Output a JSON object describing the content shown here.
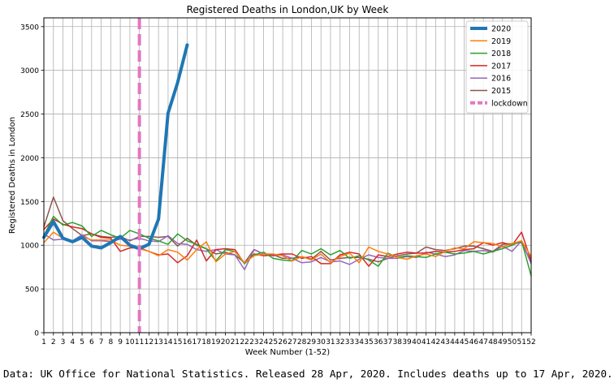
{
  "caption": "Data: UK Office for National Statistics. Released 28 Apr, 2020. Includes deaths up to 17 Apr, 2020.",
  "chart_data": {
    "type": "line",
    "title": "Registered Deaths in London,UK by Week",
    "xlabel": "Week Number (1-52)",
    "ylabel": "Registered Deaths  in London",
    "xlim": [
      1,
      52
    ],
    "ylim": [
      0,
      3600
    ],
    "x_ticks": [
      1,
      2,
      3,
      4,
      5,
      6,
      7,
      8,
      9,
      10,
      11,
      12,
      13,
      14,
      15,
      16,
      17,
      18,
      19,
      20,
      21,
      22,
      23,
      24,
      25,
      26,
      27,
      28,
      29,
      30,
      31,
      32,
      33,
      34,
      35,
      36,
      37,
      38,
      39,
      40,
      41,
      42,
      43,
      44,
      45,
      46,
      47,
      48,
      49,
      50,
      51,
      52
    ],
    "y_ticks": [
      0,
      500,
      1000,
      1500,
      2000,
      2500,
      3000,
      3500
    ],
    "grid": true,
    "legend_position": "top-right",
    "lockdown": {
      "name": "lockdown",
      "week": 11,
      "color": "#e377c2"
    },
    "series": [
      {
        "name": "2020",
        "color": "#1f77b4",
        "width": 4,
        "x": [
          1,
          2,
          3,
          4,
          5,
          6,
          7,
          8,
          9,
          10,
          11,
          12,
          13,
          14,
          15,
          16
        ],
        "y": [
          1090,
          1270,
          1080,
          1040,
          1090,
          990,
          970,
          1030,
          1100,
          1000,
          960,
          1010,
          1300,
          2510,
          2860,
          3290
        ]
      },
      {
        "name": "2019",
        "color": "#ff7f0e",
        "width": 1.5,
        "x": [
          1,
          2,
          3,
          4,
          5,
          6,
          7,
          8,
          9,
          10,
          11,
          12,
          13,
          14,
          15,
          16,
          17,
          18,
          19,
          20,
          21,
          22,
          23,
          24,
          25,
          26,
          27,
          28,
          29,
          30,
          31,
          32,
          33,
          34,
          35,
          36,
          37,
          38,
          39,
          40,
          41,
          42,
          43,
          44,
          45,
          46,
          47,
          48,
          49,
          50,
          51,
          52
        ],
        "y": [
          1030,
          1150,
          1080,
          1050,
          1100,
          1060,
          1060,
          1060,
          1000,
          990,
          960,
          930,
          880,
          950,
          920,
          830,
          950,
          1040,
          810,
          900,
          930,
          800,
          880,
          900,
          900,
          880,
          820,
          870,
          830,
          900,
          800,
          870,
          910,
          800,
          980,
          930,
          900,
          860,
          840,
          880,
          900,
          870,
          930,
          970,
          960,
          1040,
          1030,
          1020,
          980,
          1020,
          1050,
          870
        ]
      },
      {
        "name": "2018",
        "color": "#2ca02c",
        "width": 1.5,
        "x": [
          1,
          2,
          3,
          4,
          5,
          6,
          7,
          8,
          9,
          10,
          11,
          12,
          13,
          14,
          15,
          16,
          17,
          18,
          19,
          20,
          21,
          22,
          23,
          24,
          25,
          26,
          27,
          28,
          29,
          30,
          31,
          32,
          33,
          34,
          35,
          36,
          37,
          38,
          39,
          40,
          41,
          42,
          43,
          44,
          45,
          46,
          47,
          48,
          49,
          50,
          51,
          52
        ],
        "y": [
          1110,
          1330,
          1230,
          1260,
          1220,
          1100,
          1170,
          1120,
          1080,
          1170,
          1130,
          1080,
          1050,
          1010,
          1130,
          1050,
          1010,
          960,
          820,
          950,
          930,
          790,
          890,
          920,
          850,
          830,
          820,
          940,
          900,
          960,
          890,
          940,
          850,
          880,
          830,
          760,
          910,
          860,
          880,
          870,
          860,
          900,
          920,
          900,
          910,
          930,
          900,
          930,
          960,
          1000,
          1050,
          650
        ]
      },
      {
        "name": "2017",
        "color": "#d62728",
        "width": 1.5,
        "x": [
          1,
          2,
          3,
          4,
          5,
          6,
          7,
          8,
          9,
          10,
          11,
          12,
          13,
          14,
          15,
          16,
          17,
          18,
          19,
          20,
          21,
          22,
          23,
          24,
          25,
          26,
          27,
          28,
          29,
          30,
          31,
          32,
          33,
          34,
          35,
          36,
          37,
          38,
          39,
          40,
          41,
          42,
          43,
          44,
          45,
          46,
          47,
          48,
          49,
          50,
          51,
          52
        ],
        "y": [
          1180,
          1300,
          1240,
          1210,
          1190,
          1130,
          1090,
          1080,
          930,
          970,
          970,
          930,
          890,
          900,
          800,
          880,
          1060,
          820,
          950,
          960,
          950,
          790,
          900,
          880,
          890,
          900,
          900,
          850,
          870,
          790,
          790,
          890,
          920,
          900,
          760,
          890,
          870,
          900,
          920,
          910,
          910,
          930,
          920,
          930,
          950,
          960,
          1030,
          1000,
          1030,
          1000,
          1150,
          820
        ]
      },
      {
        "name": "2016",
        "color": "#9467bd",
        "width": 1.5,
        "x": [
          1,
          2,
          3,
          4,
          5,
          6,
          7,
          8,
          9,
          10,
          11,
          12,
          13,
          14,
          15,
          16,
          17,
          18,
          19,
          20,
          21,
          22,
          23,
          24,
          25,
          26,
          27,
          28,
          29,
          30,
          31,
          32,
          33,
          34,
          35,
          36,
          37,
          38,
          39,
          40,
          41,
          42,
          43,
          44,
          45,
          46,
          47,
          48,
          49,
          50,
          51,
          52
        ],
        "y": [
          1130,
          1060,
          1070,
          1050,
          1120,
          1050,
          1050,
          1040,
          1070,
          1060,
          1080,
          1050,
          1040,
          1110,
          1020,
          1010,
          950,
          930,
          950,
          900,
          890,
          720,
          950,
          900,
          880,
          890,
          850,
          800,
          810,
          860,
          810,
          820,
          780,
          840,
          890,
          860,
          850,
          850,
          870,
          860,
          920,
          900,
          870,
          890,
          940,
          930,
          940,
          920,
          990,
          930,
          1050,
          790
        ]
      },
      {
        "name": "2015",
        "color": "#8c564b",
        "width": 1.5,
        "x": [
          1,
          2,
          3,
          4,
          5,
          6,
          7,
          8,
          9,
          10,
          11,
          12,
          13,
          14,
          15,
          16,
          17,
          18,
          19,
          20,
          21,
          22,
          23,
          24,
          25,
          26,
          27,
          28,
          29,
          30,
          31,
          32,
          33,
          34,
          35,
          36,
          37,
          38,
          39,
          40,
          41,
          42,
          43,
          44,
          45,
          46,
          47,
          48,
          49,
          50,
          51,
          52
        ],
        "y": [
          1210,
          1550,
          1280,
          1190,
          1110,
          1130,
          1100,
          1090,
          1100,
          1050,
          1100,
          1100,
          1090,
          1100,
          990,
          1080,
          1000,
          960,
          900,
          920,
          890,
          800,
          950,
          900,
          890,
          850,
          850,
          870,
          840,
          930,
          830,
          850,
          860,
          860,
          840,
          810,
          850,
          880,
          900,
          910,
          980,
          950,
          940,
          960,
          990,
          990,
          960,
          930,
          1010,
          1020,
          1030,
          810
        ]
      }
    ]
  }
}
